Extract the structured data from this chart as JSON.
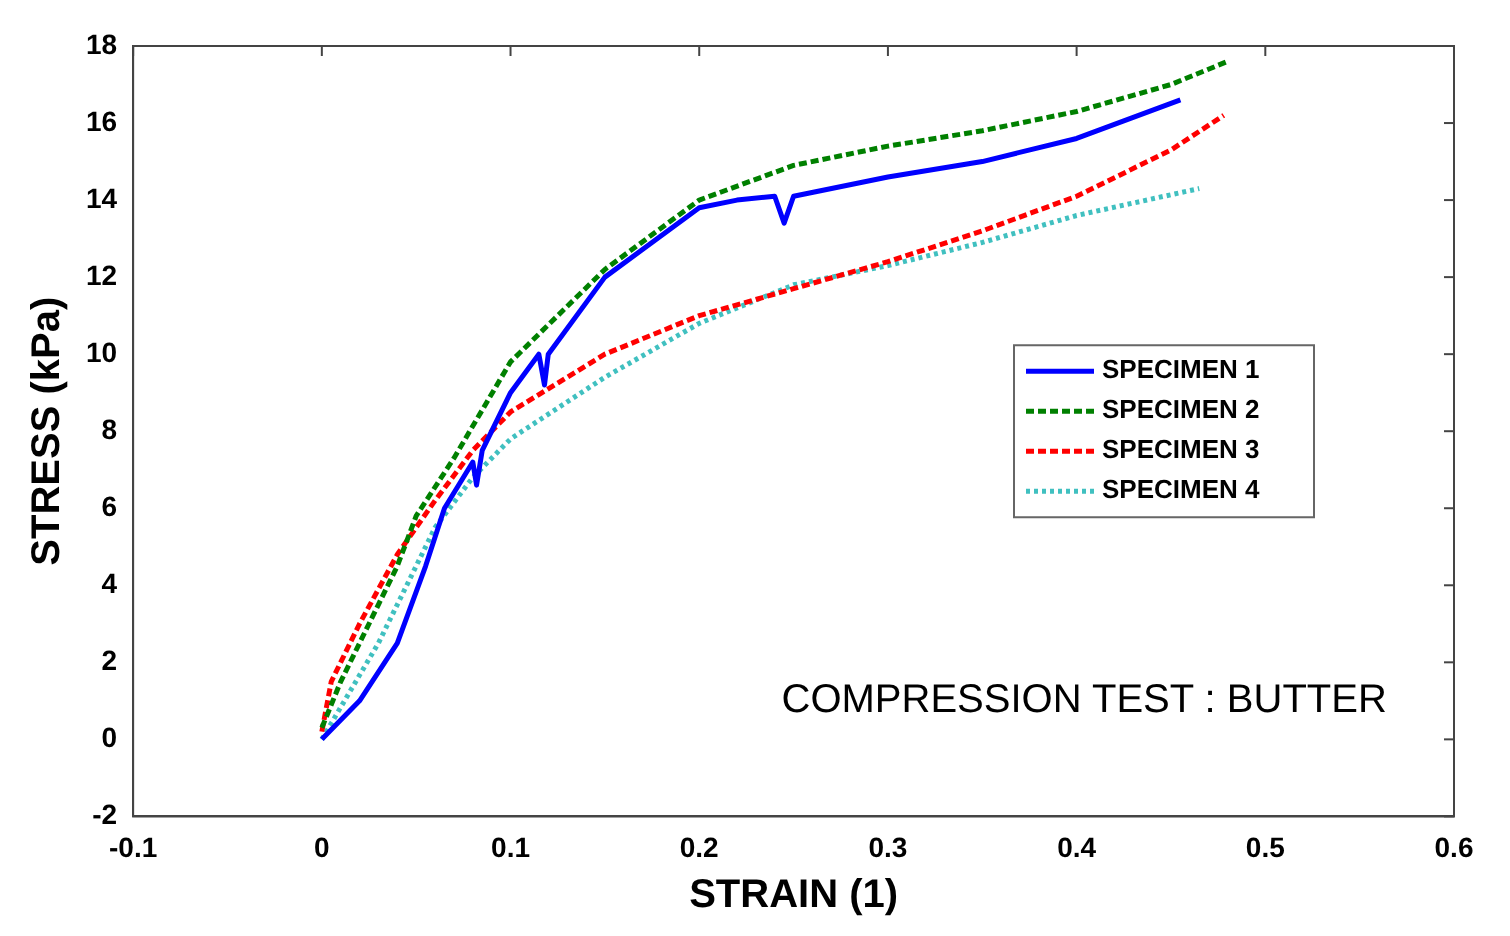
{
  "chart_data": {
    "type": "line",
    "xlabel": "STRAIN (1)",
    "ylabel": "STRESS (kPa)",
    "xlim": [
      -0.1,
      0.6
    ],
    "xticks": [
      -0.1,
      0,
      0.1,
      0.2,
      0.3,
      0.4,
      0.5,
      0.6
    ],
    "ylim": [
      -2,
      18
    ],
    "yticks": [
      -2,
      0,
      2,
      4,
      6,
      8,
      10,
      12,
      14,
      16,
      18
    ],
    "grid": false,
    "legend": "right",
    "marker": "none",
    "annotations": [
      "COMPRESSION TEST : BUTTER"
    ],
    "series": [
      {
        "name": "SPECIMEN 1",
        "color": "#0000ff",
        "line_style": "solid",
        "x": [
          0,
          0.02,
          0.04,
          0.055,
          0.065,
          0.08,
          0.082,
          0.085,
          0.1,
          0.115,
          0.118,
          0.12,
          0.15,
          0.2,
          0.22,
          0.24,
          0.245,
          0.25,
          0.3,
          0.35,
          0.4,
          0.455
        ],
        "values": [
          0,
          1,
          2.5,
          4.5,
          6,
          7.2,
          6.6,
          7.5,
          9,
          10,
          9.2,
          10,
          12,
          13.8,
          14,
          14.1,
          13.4,
          14.1,
          14.6,
          15,
          15.6,
          16.6
        ]
      },
      {
        "name": "SPECIMEN 2",
        "color": "#008000",
        "line_style": "dashed",
        "x": [
          0,
          0.01,
          0.03,
          0.04,
          0.05,
          0.07,
          0.1,
          0.15,
          0.2,
          0.25,
          0.3,
          0.35,
          0.4,
          0.45,
          0.48
        ],
        "values": [
          0.3,
          1.5,
          3.5,
          4.5,
          5.8,
          7.3,
          9.8,
          12.2,
          14,
          14.9,
          15.4,
          15.8,
          16.3,
          17,
          17.6
        ]
      },
      {
        "name": "SPECIMEN 3",
        "color": "#ff0000",
        "line_style": "dashed",
        "x": [
          0,
          0.005,
          0.02,
          0.04,
          0.06,
          0.08,
          0.1,
          0.15,
          0.2,
          0.25,
          0.3,
          0.35,
          0.4,
          0.45,
          0.478
        ],
        "values": [
          0.2,
          1.5,
          3,
          4.8,
          6.2,
          7.5,
          8.5,
          10,
          11,
          11.7,
          12.4,
          13.2,
          14.1,
          15.3,
          16.2
        ]
      },
      {
        "name": "SPECIMEN 4",
        "color": "#40c0c0",
        "line_style": "dotted",
        "x": [
          0,
          0.03,
          0.06,
          0.08,
          0.1,
          0.15,
          0.2,
          0.25,
          0.3,
          0.35,
          0.4,
          0.465
        ],
        "values": [
          0,
          2.5,
          5.5,
          6.8,
          7.8,
          9.4,
          10.8,
          11.8,
          12.3,
          12.9,
          13.6,
          14.3
        ]
      }
    ]
  }
}
